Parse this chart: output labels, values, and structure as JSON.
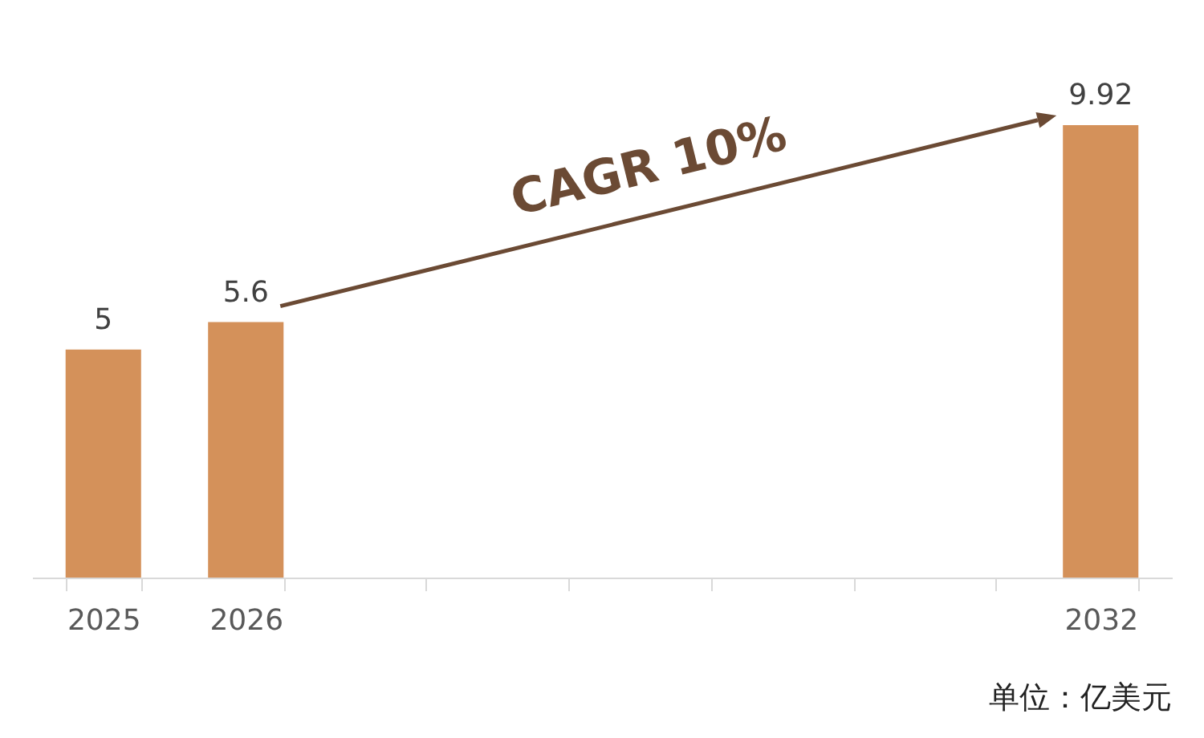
{
  "chart_data": {
    "type": "bar",
    "categories": [
      "2025",
      "2026",
      null,
      null,
      null,
      null,
      null,
      "2032"
    ],
    "values": [
      5,
      5.6,
      null,
      null,
      null,
      null,
      null,
      9.92
    ],
    "color": "#d4915a",
    "data_labels": true,
    "annotations": [
      "CAGR 10%",
      "单位：亿美元"
    ]
  }
}
